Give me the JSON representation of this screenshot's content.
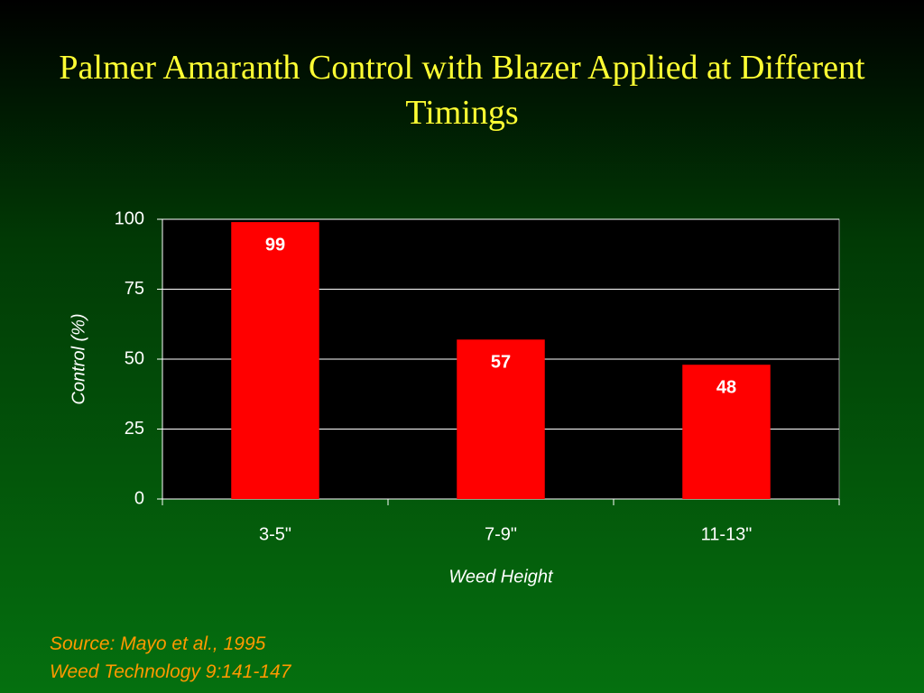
{
  "chart_data": {
    "type": "bar",
    "title": "Palmer Amaranth Control with Blazer Applied at Different Timings",
    "x_label": "Weed Height",
    "y_label": "Control (%)",
    "categories": [
      "3-5\"",
      "7-9\"",
      "11-13\""
    ],
    "values": [
      99,
      57,
      48
    ],
    "color": "#ff0000",
    "ylim": [
      0,
      100
    ],
    "yticks": [
      0,
      25,
      50,
      75,
      100
    ],
    "grid": true,
    "source_lines": [
      "Source: Mayo et al., 1995",
      "Weed Technology 9:141-147"
    ]
  }
}
